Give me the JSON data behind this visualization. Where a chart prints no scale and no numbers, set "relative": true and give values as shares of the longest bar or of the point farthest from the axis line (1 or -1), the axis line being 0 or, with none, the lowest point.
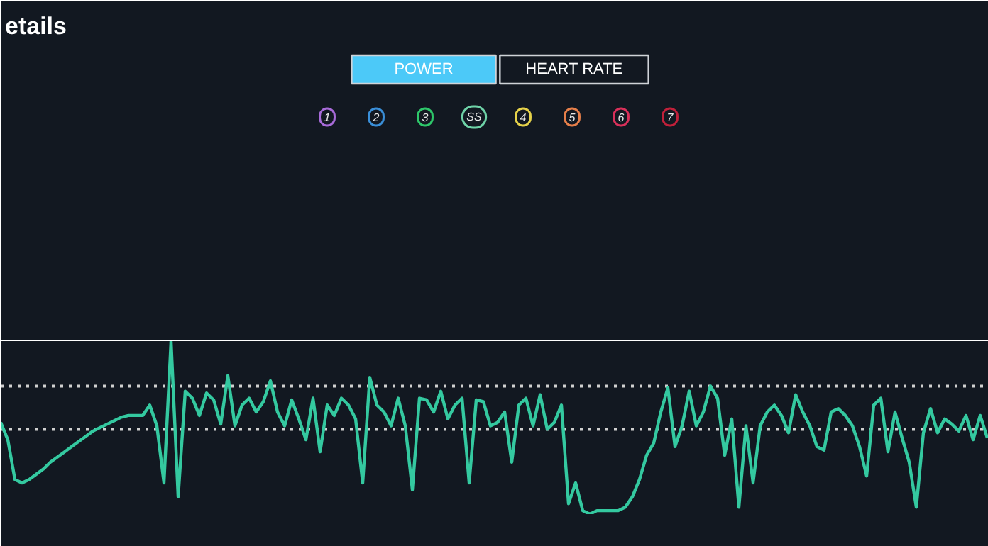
{
  "chart_data": {
    "type": "line",
    "title": "etails",
    "relative": true,
    "color": "#34c9a0",
    "line_style": "solid",
    "marker": "none",
    "grid": false,
    "annotations": [
      "POWER",
      "HEART RATE",
      "1",
      "2",
      "3",
      "SS",
      "4",
      "5",
      "6",
      "7"
    ],
    "ref_lines": [
      {
        "axis": "y",
        "value": 0.74,
        "label": null,
        "color": "#d0d0d0",
        "line_style": "dotted"
      },
      {
        "axis": "y",
        "value": 0.49,
        "label": null,
        "color": "#d0d0d0",
        "line_style": "dotted"
      }
    ],
    "categories": [
      null,
      null,
      null,
      null,
      null,
      null,
      null,
      null,
      null,
      null,
      null,
      null,
      null,
      null,
      null,
      null,
      null,
      null,
      null,
      null,
      null,
      null,
      null,
      null,
      null,
      null,
      null,
      null,
      null,
      null,
      null,
      null,
      null,
      null,
      null,
      null,
      null,
      null,
      null,
      null,
      null,
      null,
      null,
      null,
      null,
      null,
      null,
      null,
      null,
      null,
      null,
      null,
      null,
      null,
      null,
      null,
      null,
      null,
      null,
      null,
      null,
      null,
      null,
      null,
      null,
      null,
      null,
      null,
      null,
      null,
      null,
      null,
      null,
      null,
      null,
      null,
      null,
      null,
      null,
      null,
      null,
      null,
      null,
      null,
      null,
      null,
      null,
      null,
      null,
      null,
      null,
      null,
      null,
      null,
      null,
      null,
      null,
      null,
      null,
      null,
      null,
      null,
      null,
      null,
      null,
      null,
      null,
      null,
      null,
      null,
      null,
      null,
      null,
      null,
      null,
      null,
      null,
      null,
      null,
      null,
      null,
      null,
      null,
      null,
      null,
      null,
      null,
      null,
      null,
      null,
      null,
      null,
      null,
      null,
      null,
      null,
      null,
      null,
      null,
      null
    ],
    "values": [
      0.53,
      0.43,
      0.2,
      0.18,
      0.2,
      0.23,
      0.26,
      0.3,
      0.33,
      0.36,
      0.39,
      0.42,
      0.45,
      0.48,
      0.5,
      0.52,
      0.54,
      0.56,
      0.57,
      0.57,
      0.57,
      0.63,
      0.51,
      0.18,
      1.0,
      0.1,
      0.71,
      0.67,
      0.57,
      0.7,
      0.66,
      0.52,
      0.8,
      0.51,
      0.63,
      0.67,
      0.59,
      0.65,
      0.77,
      0.59,
      0.51,
      0.66,
      0.55,
      0.43,
      0.67,
      0.36,
      0.63,
      0.57,
      0.67,
      0.63,
      0.55,
      0.18,
      0.79,
      0.63,
      0.59,
      0.51,
      0.67,
      0.51,
      0.14,
      0.67,
      0.66,
      0.59,
      0.71,
      0.55,
      0.63,
      0.67,
      0.18,
      0.66,
      0.65,
      0.51,
      0.53,
      0.59,
      0.3,
      0.63,
      0.67,
      0.51,
      0.69,
      0.49,
      0.53,
      0.63,
      0.06,
      0.18,
      0.02,
      0.0,
      0.02,
      0.02,
      0.02,
      0.02,
      0.04,
      0.1,
      0.2,
      0.34,
      0.41,
      0.59,
      0.73,
      0.39,
      0.51,
      0.71,
      0.51,
      0.59,
      0.74,
      0.67,
      0.34,
      0.55,
      0.04,
      0.51,
      0.18,
      0.51,
      0.59,
      0.63,
      0.57,
      0.47,
      0.69,
      0.59,
      0.51,
      0.39,
      0.37,
      0.59,
      0.61,
      0.57,
      0.51,
      0.39,
      0.22,
      0.63,
      0.67,
      0.36,
      0.59,
      0.44,
      0.3,
      0.04,
      0.47,
      0.61,
      0.47,
      0.55,
      0.52,
      0.48,
      0.57,
      0.43,
      0.57,
      0.44
    ]
  }
}
